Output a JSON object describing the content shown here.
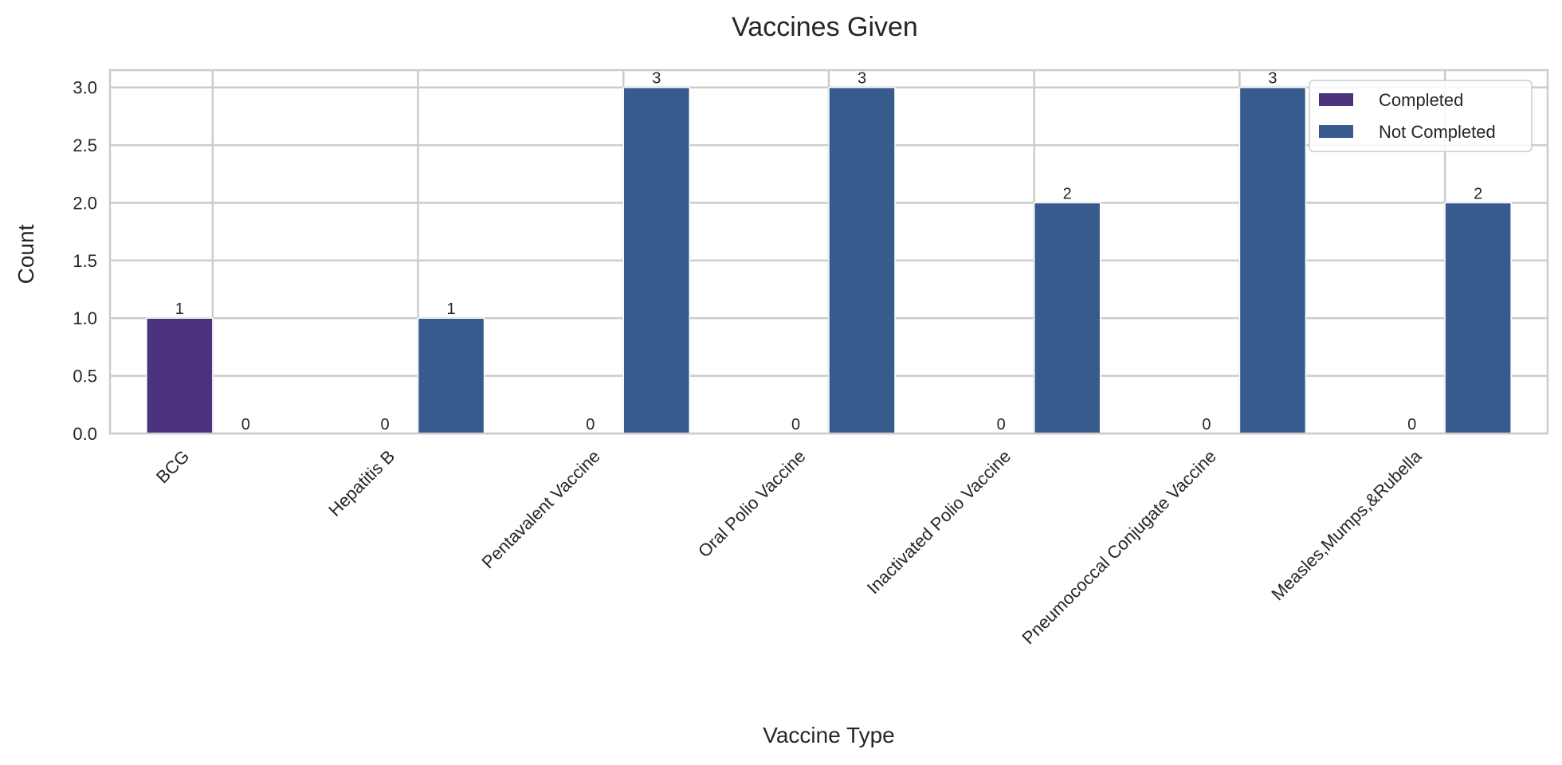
{
  "chart_data": {
    "type": "bar",
    "title": "Vaccines Given",
    "xlabel": "Vaccine Type",
    "ylabel": "Count",
    "categories": [
      "BCG",
      "Hepatitis B",
      "Pentavalent Vaccine",
      "Oral Polio Vaccine",
      "Inactivated Polio Vaccine",
      "Pneumococcal Conjugate Vaccine",
      "Measles,Mumps,&Rubella"
    ],
    "series": [
      {
        "name": "Completed",
        "values": [
          1,
          0,
          0,
          0,
          0,
          0,
          0
        ],
        "color": "#4a327e"
      },
      {
        "name": "Not Completed",
        "values": [
          0,
          1,
          3,
          3,
          2,
          3,
          2
        ],
        "color": "#375b8c"
      }
    ],
    "ylim": [
      0,
      3.15
    ],
    "yticks": [
      "0.0",
      "0.5",
      "1.0",
      "1.5",
      "2.0",
      "2.5",
      "3.0"
    ],
    "grid": true,
    "legend_position": "top-right"
  }
}
